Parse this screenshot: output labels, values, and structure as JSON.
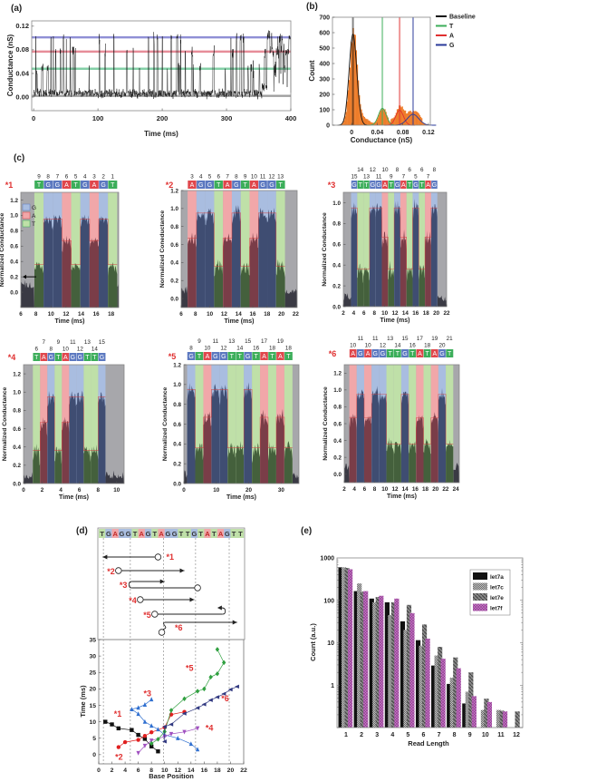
{
  "panel_labels": [
    "(a)",
    "(b)",
    "(c)",
    "(d)",
    "(e)"
  ],
  "colors": {
    "G": "#5b78c0",
    "A": "#e0474c",
    "T": "#3cae5a",
    "G_light": "#a9bde0",
    "A_light": "#f1a7a9",
    "T_light": "#bfe0a8",
    "gray_region": "#a7a7ab",
    "label_red": "#e03030",
    "histogram": "#ee7d2a"
  },
  "chart_data": [
    {
      "type": "line",
      "panel": "(a)",
      "xlabel": "Time (ms)",
      "ylabel": "Conductance (nS)",
      "xlim": [
        -3,
        400
      ],
      "ylim": [
        -0.023,
        0.129
      ],
      "xticks": [
        0,
        100,
        200,
        300,
        400
      ],
      "xtick_labels": [
        "0",
        "100",
        "200",
        "300",
        "400"
      ],
      "yticks": [
        0,
        0.04,
        0.08,
        0.12
      ],
      "ytick_labels": [
        "0.00",
        "0.04",
        "0.08",
        "0.12"
      ],
      "levels": [
        {
          "base": "Baseline",
          "value": 0.002,
          "color": "#808080"
        },
        {
          "base": "T",
          "value": 0.048,
          "color": "#5cc08a"
        },
        {
          "base": "A",
          "value": 0.077,
          "color": "#e06878"
        },
        {
          "base": "G",
          "value": 0.101,
          "color": "#6a6ac8"
        }
      ]
    },
    {
      "type": "histogram",
      "panel": "(b)",
      "xlabel": "Conductance (nS)",
      "ylabel": "Count",
      "xlim": [
        -0.03,
        0.123
      ],
      "ylim": [
        0,
        700
      ],
      "xticks": [
        0,
        0.04,
        0.08,
        0.12
      ],
      "xtick_labels": [
        "0",
        "0.04",
        "0.08",
        "0.12"
      ],
      "yticks": [
        0,
        100,
        200,
        300,
        400,
        500,
        600,
        700
      ],
      "ytick_labels": [
        "0",
        "100",
        "200",
        "300",
        "400",
        "500",
        "600",
        "700"
      ],
      "legend_position": "right",
      "fits": [
        {
          "name": "Baseline",
          "center": 0.002,
          "peak": 590,
          "sigma": 0.006,
          "color": "#111111"
        },
        {
          "name": "T",
          "center": 0.048,
          "peak": 110,
          "sigma": 0.006,
          "color": "#3cae5a"
        },
        {
          "name": "A",
          "center": 0.075,
          "peak": 97,
          "sigma": 0.006,
          "color": "#e03030"
        },
        {
          "name": "G",
          "center": 0.096,
          "peak": 70,
          "sigma": 0.009,
          "color": "#2a3a9a"
        }
      ]
    },
    {
      "type": "area",
      "panel": "(c)",
      "xlabel": "Time (ms)",
      "base_levels": {
        "G": 0.95,
        "A": 0.67,
        "T": 0.36
      },
      "legend": [
        "G",
        "A",
        "T"
      ],
      "panels": [
        {
          "label": "*1",
          "ylabel": "Normalized Conductance",
          "bases": [
            "T",
            "G",
            "G",
            "A",
            "T",
            "G",
            "A",
            "G",
            "T"
          ],
          "positions": [
            "9",
            "8",
            "7",
            "6",
            "5",
            "4",
            "3",
            "2",
            "1"
          ],
          "xlim": [
            6,
            19
          ],
          "ylim": [
            -0.2,
            1.3
          ],
          "active": [
            7.8,
            18.8
          ],
          "xticks": [
            6,
            8,
            10,
            12,
            14,
            16,
            18
          ],
          "xtick_labels": [
            "6",
            "8",
            "10",
            "12",
            "14",
            "16",
            "18"
          ],
          "yticks": [
            0,
            0.2,
            0.4,
            0.6,
            0.8,
            1.0,
            1.2
          ],
          "ytick_labels": [
            "0.0",
            "0.2",
            "0.4",
            "0.6",
            "0.8",
            "1.0",
            "1.2"
          ]
        },
        {
          "label": "*2",
          "ylabel": "Normalized Coneductance",
          "bases": [
            "A",
            "G",
            "G",
            "T",
            "A",
            "G",
            "T",
            "A",
            "G",
            "G",
            "T"
          ],
          "positions": [
            "3",
            "4",
            "5",
            "6",
            "7",
            "8",
            "9",
            "10",
            "11",
            "12",
            "13"
          ],
          "xlim": [
            6,
            22.2
          ],
          "ylim": [
            -0.1,
            1.2
          ],
          "active": [
            6.9,
            20.5
          ],
          "xticks": [
            6,
            8,
            10,
            12,
            14,
            16,
            18,
            20,
            22
          ],
          "xtick_labels": [
            "6",
            "8",
            "10",
            "12",
            "14",
            "16",
            "18",
            "20",
            "22"
          ],
          "yticks": [
            0,
            0.2,
            0.4,
            0.6,
            0.8,
            1.0,
            1.2
          ],
          "ytick_labels": [
            "0.0",
            "0.2",
            "0.4",
            "0.6",
            "0.8",
            "1.0",
            "1.2"
          ]
        },
        {
          "label": "*3",
          "ylabel": "Normalized Conductance",
          "bases": [
            "G",
            "T",
            "T",
            "G",
            "G",
            "A",
            "T",
            "G",
            "A",
            "T",
            "G",
            "T",
            "A",
            "G"
          ],
          "positions": [
            "15",
            "14",
            "13",
            "12",
            "11",
            "10",
            "9",
            "8",
            "7",
            "6",
            "5",
            "6",
            "7",
            "8"
          ],
          "xlim": [
            2,
            22
          ],
          "ylim": [
            0,
            1.1
          ],
          "active": [
            3.5,
            20.2
          ],
          "xticks": [
            2,
            4,
            6,
            8,
            10,
            12,
            14,
            16,
            18,
            20,
            22
          ],
          "xtick_labels": [
            "2",
            "4",
            "6",
            "8",
            "10",
            "12",
            "14",
            "16",
            "18",
            "20",
            "22"
          ],
          "yticks": [
            0,
            0.2,
            0.4,
            0.6,
            0.8,
            1.0
          ],
          "ytick_labels": [
            "0.0",
            "0.2",
            "0.4",
            "0.6",
            "0.8",
            "1.0"
          ]
        },
        {
          "label": "*4",
          "ylabel": "Normalized Conductance",
          "bases": [
            "T",
            "A",
            "G",
            "T",
            "A",
            "G",
            "G",
            "T",
            "T",
            "G"
          ],
          "positions": [
            "6",
            "7",
            "8",
            "9",
            "10",
            "11",
            "12",
            "13",
            "14",
            "15"
          ],
          "xlim": [
            0,
            10.8
          ],
          "ylim": [
            0,
            1.3
          ],
          "active": [
            1.0,
            8.8
          ],
          "xticks": [
            0,
            2,
            4,
            6,
            8,
            10
          ],
          "xtick_labels": [
            "0",
            "2",
            "4",
            "6",
            "8",
            "10"
          ],
          "yticks": [
            0,
            0.2,
            0.4,
            0.6,
            0.8,
            1.0,
            1.2
          ],
          "ytick_labels": [
            "0.0",
            "0.2",
            "0.4",
            "0.6",
            "0.8",
            "1.0",
            "1.2"
          ]
        },
        {
          "label": "*5",
          "ylabel": "Normalized Conductance",
          "bases": [
            "G",
            "T",
            "A",
            "G",
            "G",
            "T",
            "T",
            "G",
            "T",
            "A",
            "T",
            "A",
            "T"
          ],
          "positions": [
            "8",
            "9",
            "10",
            "11",
            "12",
            "13",
            "14",
            "15",
            "16",
            "17",
            "18",
            "19",
            "18"
          ],
          "xlim": [
            0,
            35.5
          ],
          "ylim": [
            0,
            1.2
          ],
          "active": [
            1.0,
            33.5
          ],
          "xticks": [
            0,
            10,
            20,
            30
          ],
          "xtick_labels": [
            "0",
            "10",
            "20",
            "30"
          ],
          "yticks": [
            0,
            0.2,
            0.4,
            0.6,
            0.8,
            1.0,
            1.2
          ],
          "ytick_labels": [
            "0.0",
            "0.2",
            "0.4",
            "0.6",
            "0.8",
            "1.0",
            "1.2"
          ]
        },
        {
          "label": "*6",
          "ylabel": "Normalized Conductance",
          "bases": [
            "A",
            "G",
            "A",
            "G",
            "G",
            "T",
            "T",
            "G",
            "T",
            "A",
            "T",
            "A",
            "G",
            "T"
          ],
          "positions": [
            "10",
            "11",
            "10",
            "11",
            "12",
            "13",
            "14",
            "15",
            "16",
            "17",
            "18",
            "19",
            "20",
            "21"
          ],
          "xlim": [
            2,
            24.7
          ],
          "ylim": [
            -0.1,
            1.3
          ],
          "active": [
            3.0,
            23.5
          ],
          "xticks": [
            2,
            4,
            6,
            8,
            10,
            12,
            14,
            16,
            18,
            20,
            22,
            24
          ],
          "xtick_labels": [
            "2",
            "4",
            "6",
            "8",
            "10",
            "12",
            "14",
            "16",
            "18",
            "20",
            "22",
            "24"
          ],
          "yticks": [
            0,
            0.2,
            0.4,
            0.6,
            0.8,
            1.0,
            1.2
          ],
          "ytick_labels": [
            "0.0",
            "0.2",
            "0.4",
            "0.6",
            "0.8",
            "1.0",
            "1.2"
          ]
        }
      ]
    },
    {
      "type": "scatter",
      "panel": "(d)",
      "sequence": [
        "T",
        "G",
        "A",
        "G",
        "G",
        "T",
        "A",
        "G",
        "T",
        "A",
        "G",
        "G",
        "T",
        "T",
        "G",
        "T",
        "A",
        "T",
        "A",
        "G",
        "T",
        "T"
      ],
      "schematic": [
        {
          "label": "*1",
          "start": 9,
          "end": 0.6
        },
        {
          "label": "*2",
          "start": 3,
          "end": 13
        },
        {
          "label": "*3",
          "start": 15,
          "turn": 5,
          "end": 10
        },
        {
          "label": "*4",
          "start": 6.3,
          "end": 14.5
        },
        {
          "label": "*5",
          "start": 8.5,
          "turn": 18.8,
          "end": 18
        },
        {
          "label": "*6",
          "start": 9.7,
          "end": 21
        }
      ],
      "xlabel": "Base Position",
      "ylabel": "Time (ms)",
      "xlim": [
        0,
        22
      ],
      "ylim": [
        -2.8,
        35
      ],
      "xticks": [
        0,
        2,
        4,
        6,
        8,
        10,
        12,
        14,
        16,
        18,
        20,
        22
      ],
      "xtick_labels": [
        "0",
        "2",
        "4",
        "6",
        "8",
        "10",
        "12",
        "14",
        "16",
        "18",
        "20",
        "22"
      ],
      "yticks": [
        0,
        5,
        10,
        15,
        20,
        25,
        30,
        35
      ],
      "ytick_labels": [
        "0",
        "5",
        "10",
        "15",
        "20",
        "25",
        "30",
        "35"
      ],
      "series": [
        {
          "name": "*1",
          "color": "#111111",
          "marker": "square",
          "points": [
            [
              1,
              10
            ],
            [
              2,
              9.2
            ],
            [
              3,
              8
            ],
            [
              5,
              7.5
            ],
            [
              6,
              6
            ],
            [
              7,
              4.8
            ],
            [
              8,
              2.5
            ],
            [
              9,
              1
            ]
          ]
        },
        {
          "name": "*2",
          "color": "#e02020",
          "marker": "circle",
          "points": [
            [
              3,
              2.3
            ],
            [
              4,
              3.8
            ],
            [
              6,
              4.5
            ],
            [
              7,
              5.7
            ],
            [
              8,
              6.8
            ],
            [
              10,
              8.3
            ],
            [
              11,
              12.2
            ],
            [
              13,
              13
            ]
          ]
        },
        {
          "name": "*3",
          "color": "#3070d0",
          "marker": "triangle-up",
          "points": [
            [
              15,
              1.6
            ],
            [
              14,
              3.3
            ],
            [
              12,
              5
            ],
            [
              10,
              6
            ],
            [
              9,
              7.7
            ],
            [
              8,
              8.8
            ],
            [
              7,
              10
            ],
            [
              6,
              12.4
            ],
            [
              5,
              13.8
            ],
            [
              6,
              14.3
            ],
            [
              7,
              15.2
            ],
            [
              8,
              16.8
            ]
          ]
        },
        {
          "name": "*4",
          "color": "#a050c0",
          "marker": "triangle-down",
          "points": [
            [
              6,
              0.5
            ],
            [
              7,
              2.7
            ],
            [
              8,
              4.3
            ],
            [
              10,
              5.5
            ],
            [
              11,
              6.3
            ],
            [
              13,
              6.9
            ],
            [
              15,
              8
            ]
          ]
        },
        {
          "name": "*5",
          "color": "#30a040",
          "marker": "diamond",
          "points": [
            [
              8,
              3.4
            ],
            [
              9,
              4.7
            ],
            [
              10,
              7
            ],
            [
              11,
              13.5
            ],
            [
              13,
              17
            ],
            [
              15,
              19.3
            ],
            [
              16,
              20
            ],
            [
              17,
              23.6
            ],
            [
              18,
              24.6
            ],
            [
              19,
              28
            ],
            [
              18,
              32
            ]
          ]
        },
        {
          "name": "*6",
          "color": "#303880",
          "marker": "triangle-left",
          "points": [
            [
              10,
              4
            ],
            [
              10,
              8.5
            ],
            [
              11,
              9.2
            ],
            [
              13,
              12.5
            ],
            [
              15,
              14.2
            ],
            [
              16,
              15.3
            ],
            [
              17,
              16.6
            ],
            [
              18,
              17.5
            ],
            [
              19,
              18.5
            ],
            [
              20,
              19.8
            ],
            [
              21,
              20.7
            ]
          ]
        }
      ]
    },
    {
      "type": "bar",
      "panel": "(e)",
      "xlabel": "Read Length",
      "ylabel": "Count (a.u.)",
      "yscale": "log",
      "ylim": [
        0.1,
        1000
      ],
      "yticks": [
        1,
        10,
        100,
        1000
      ],
      "ytick_labels": [
        "1",
        "10",
        "100",
        "1000"
      ],
      "categories": [
        "1",
        "2",
        "3",
        "4",
        "5",
        "6",
        "7",
        "8",
        "9",
        "10",
        "11",
        "12"
      ],
      "legend_position": "top-right",
      "series": [
        {
          "name": "let7a",
          "pattern": "solid-black",
          "values": [
            600,
            165,
            110,
            90,
            32,
            11.5,
            2.9,
            1.07,
            0.37,
            null,
            null,
            null
          ]
        },
        {
          "name": "let7c",
          "pattern": "checker-gray",
          "values": [
            600,
            250,
            90,
            45,
            20,
            8.5,
            5,
            1.5,
            0.7,
            0.26,
            0.26,
            null
          ]
        },
        {
          "name": "let7e",
          "pattern": "diagonal-gray",
          "values": [
            580,
            160,
            120,
            90,
            78,
            27,
            8,
            4.5,
            2,
            0.48,
            0.25,
            0.24
          ]
        },
        {
          "name": "let7f",
          "pattern": "crosshatch-magenta",
          "values": [
            540,
            165,
            128,
            110,
            50,
            12.5,
            4.2,
            2.5,
            0.55,
            0.4,
            0.24,
            null
          ]
        }
      ]
    }
  ]
}
